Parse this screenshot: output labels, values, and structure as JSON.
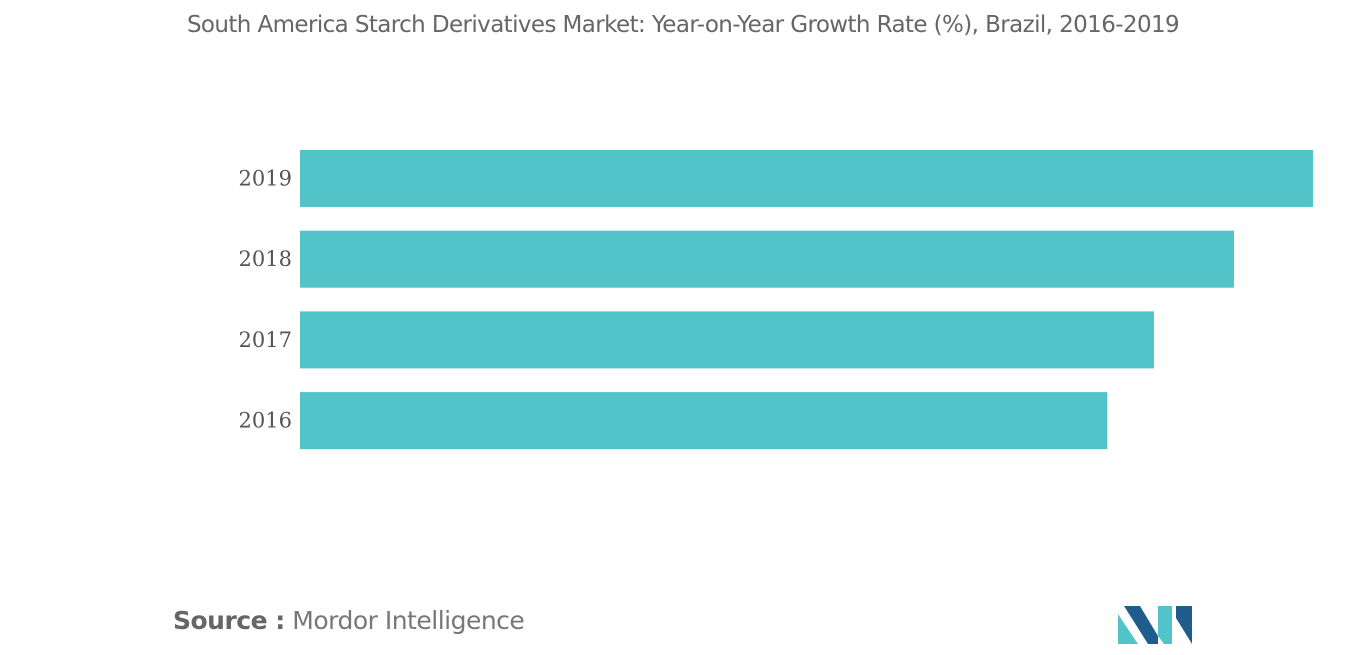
{
  "chart_data": {
    "type": "bar",
    "orientation": "horizontal",
    "title": "South America Starch Derivatives Market: Year-on-Year Growth Rate (%), Brazil, 2016-2019",
    "categories": [
      "2019",
      "2018",
      "2017",
      "2016"
    ],
    "values": [
      1.0,
      0.922,
      0.843,
      0.797
    ],
    "xlabel": "",
    "ylabel": "",
    "xlim": [
      0,
      1.0
    ],
    "grid": false,
    "legend": "none",
    "bar_color": "#52C3C8"
  },
  "source": {
    "label": "Source :",
    "value": "Mordor Intelligence"
  },
  "colors": {
    "logo_dark": "#1F5E8C",
    "logo_light": "#52C3C8"
  }
}
